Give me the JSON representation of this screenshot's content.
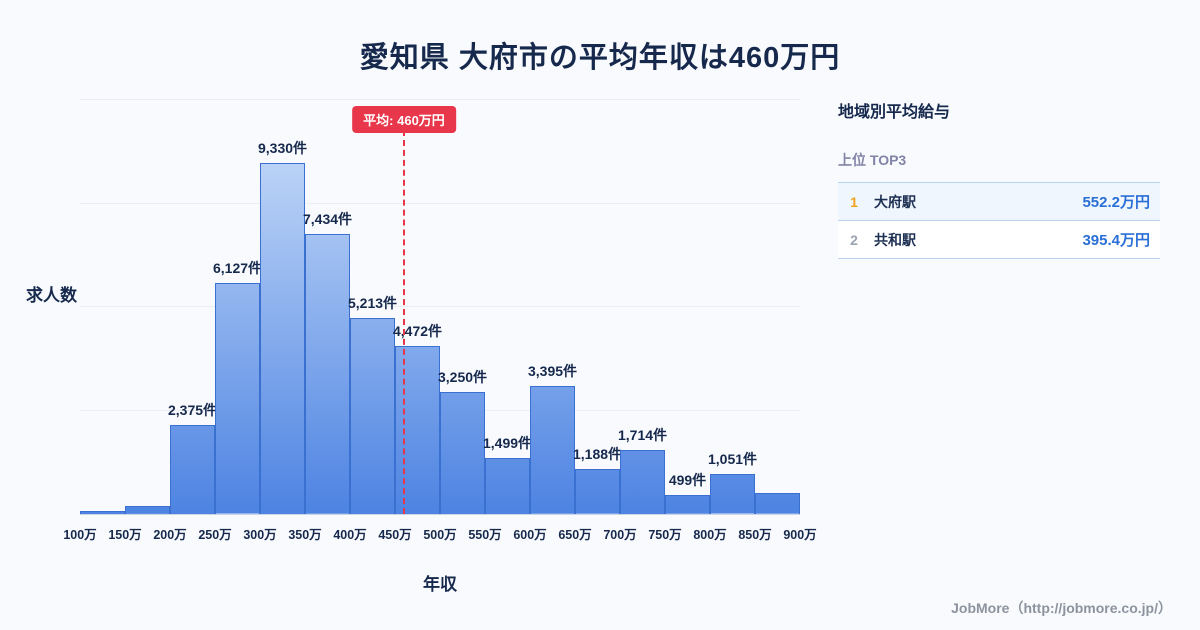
{
  "title": "愛知県 大府市の平均年収は460万円",
  "colors": {
    "background": "#f8fafd",
    "text_navy": "#16294d",
    "bar_border": "#3a71d0",
    "bar_gradient_top": "#cfe1fa",
    "bar_gradient_bottom": "#4d83e2",
    "average_red": "#e8364a",
    "salary_blue": "#2a6fd6",
    "rank1_gold": "#f0a31c",
    "rank2_grey": "#9aa2b1"
  },
  "chart_data": {
    "type": "bar",
    "title": "愛知県 大府市の平均年収は460万円",
    "xlabel": "年収",
    "ylabel": "求人数",
    "x_tick_labels": [
      "100万",
      "150万",
      "200万",
      "250万",
      "300万",
      "350万",
      "400万",
      "450万",
      "500万",
      "550万",
      "600万",
      "650万",
      "700万",
      "750万",
      "800万",
      "850万",
      "900万"
    ],
    "x_range": [
      100,
      900
    ],
    "values": [
      80,
      210,
      2375,
      6127,
      9330,
      7434,
      5213,
      4472,
      3250,
      1499,
      3395,
      1188,
      1714,
      499,
      1051,
      550
    ],
    "bar_labels": [
      null,
      null,
      "2,375件",
      "6,127件",
      "9,330件",
      "7,434件",
      "5,213件",
      "4,472件",
      "3,250件",
      "1,499件",
      "3,395件",
      "1,188件",
      "1,714件",
      "499件",
      "1,051件",
      null
    ],
    "ylim": [
      0,
      11000
    ],
    "grid": "horizontal, 4 intervals, faint",
    "legend": "none",
    "average": {
      "value": 460,
      "label": "平均: 460万円"
    }
  },
  "panel": {
    "title": "地域別平均給与",
    "subtitle": "上位 TOP3",
    "rows": [
      {
        "rank": "1",
        "name": "大府駅",
        "value": "552.2万円"
      },
      {
        "rank": "2",
        "name": "共和駅",
        "value": "395.4万円"
      }
    ]
  },
  "footer": {
    "credit": "JobMore（http://jobmore.co.jp/）"
  }
}
